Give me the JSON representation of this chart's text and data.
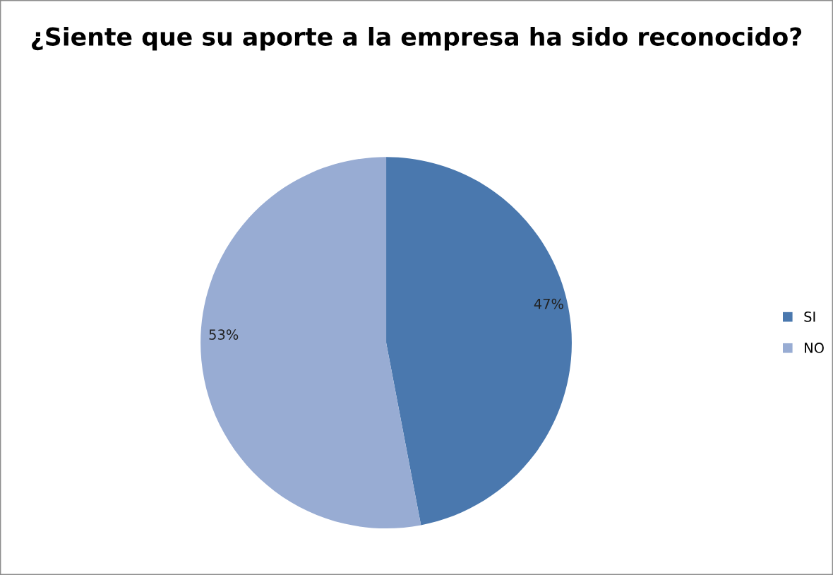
{
  "chart_data": {
    "type": "pie",
    "title": "¿Siente que su aporte a la empresa ha sido reconocido?",
    "categories": [
      "SI",
      "NO"
    ],
    "values": [
      47,
      53
    ],
    "value_labels": [
      "47%",
      "53%"
    ],
    "colors": [
      "#4a78ae",
      "#98acd3"
    ],
    "legend": "right"
  }
}
